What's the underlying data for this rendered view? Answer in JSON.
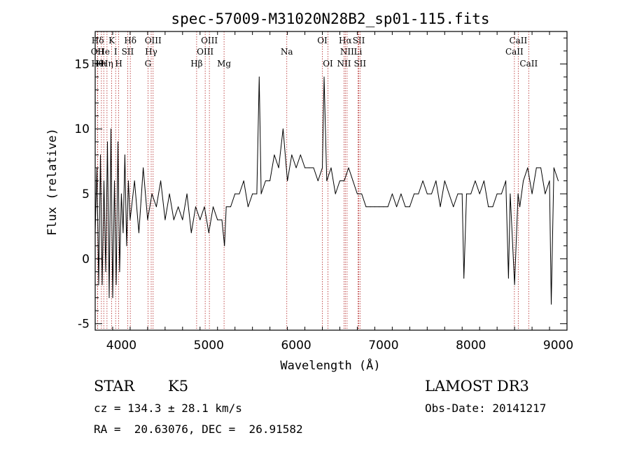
{
  "chart_data": {
    "type": "line",
    "title": "spec-57009-M31020N28B2_sp01-115.fits",
    "xlabel": "Wavelength (Å)",
    "ylabel": "Flux (relative)",
    "xlim": [
      3700,
      9100
    ],
    "ylim": [
      -5.5,
      17.5
    ],
    "xticks": [
      4000,
      5000,
      6000,
      7000,
      8000,
      9000
    ],
    "yticks": [
      -5,
      0,
      5,
      10,
      15
    ],
    "grid": false,
    "series": [
      {
        "name": "flux",
        "x": [
          3700,
          3720,
          3740,
          3760,
          3780,
          3800,
          3820,
          3840,
          3860,
          3880,
          3900,
          3920,
          3940,
          3960,
          3980,
          4000,
          4020,
          4040,
          4060,
          4080,
          4100,
          4150,
          4200,
          4250,
          4300,
          4350,
          4400,
          4450,
          4500,
          4550,
          4600,
          4650,
          4700,
          4750,
          4800,
          4850,
          4900,
          4950,
          5000,
          5050,
          5100,
          5150,
          5180,
          5200,
          5250,
          5300,
          5350,
          5400,
          5450,
          5500,
          5550,
          5577,
          5600,
          5650,
          5700,
          5750,
          5800,
          5850,
          5900,
          5950,
          6000,
          6050,
          6100,
          6150,
          6200,
          6250,
          6300,
          6320,
          6350,
          6400,
          6450,
          6500,
          6550,
          6600,
          6650,
          6700,
          6750,
          6800,
          6850,
          6900,
          6950,
          7000,
          7050,
          7100,
          7150,
          7200,
          7250,
          7300,
          7350,
          7400,
          7450,
          7500,
          7550,
          7600,
          7650,
          7700,
          7750,
          7800,
          7850,
          7900,
          7920,
          7950,
          8000,
          8050,
          8100,
          8150,
          8200,
          8250,
          8300,
          8350,
          8400,
          8430,
          8450,
          8500,
          8540,
          8560,
          8600,
          8650,
          8700,
          8750,
          8800,
          8850,
          8900,
          8920,
          8950,
          9000
        ],
        "y": [
          2,
          7,
          -2,
          8,
          -2,
          6,
          -1,
          9,
          -3,
          10,
          -3,
          6,
          -2,
          9,
          -1,
          5,
          2,
          8,
          1,
          6,
          3,
          6,
          2,
          7,
          3,
          5,
          4,
          6,
          3,
          5,
          3,
          4,
          3,
          5,
          2,
          4,
          3,
          4,
          2,
          4,
          3,
          3,
          1,
          4,
          4,
          5,
          5,
          6,
          4,
          5,
          5,
          14,
          5,
          6,
          6,
          8,
          7,
          10,
          6,
          8,
          7,
          8,
          7,
          7,
          7,
          6,
          7,
          14,
          6,
          7,
          5,
          6,
          6,
          7,
          6,
          5,
          5,
          4,
          4,
          4,
          4,
          4,
          4,
          5,
          4,
          5,
          4,
          4,
          5,
          5,
          6,
          5,
          5,
          6,
          4,
          6,
          5,
          4,
          5,
          5,
          -1.5,
          5,
          5,
          6,
          5,
          6,
          4,
          4,
          5,
          5,
          6,
          -1.5,
          5,
          -2,
          5,
          4,
          6,
          7,
          5,
          7,
          7,
          5,
          6,
          -3.5,
          7,
          6
        ]
      }
    ],
    "line_markers": [
      {
        "label": "Hδ",
        "row": 1,
        "wave": 3729
      },
      {
        "label": "OII",
        "row": 2,
        "wave": 3727
      },
      {
        "label": "Hθ",
        "row": 3,
        "wave": 3727
      },
      {
        "label": "Hι",
        "row": 3,
        "wave": 3771
      },
      {
        "label": "He",
        "row": 2,
        "wave": 3798
      },
      {
        "label": "Hη",
        "row": 3,
        "wave": 3835
      },
      {
        "label": "K",
        "row": 1,
        "wave": 3889
      },
      {
        "label": "I",
        "row": 2,
        "wave": 3934
      },
      {
        "label": "H",
        "row": 3,
        "wave": 3969
      },
      {
        "label": "Hδ",
        "row": 1,
        "wave": 4102
      },
      {
        "label": "SII",
        "row": 2,
        "wave": 4072
      },
      {
        "label": "OIII",
        "row": 1,
        "wave": 4363
      },
      {
        "label": "Hγ",
        "row": 2,
        "wave": 4341
      },
      {
        "label": "G",
        "row": 3,
        "wave": 4304
      },
      {
        "label": "Hβ",
        "row": 3,
        "wave": 4861
      },
      {
        "label": "OIII",
        "row": 1,
        "wave": 5007
      },
      {
        "label": "OIII",
        "row": 2,
        "wave": 4959
      },
      {
        "label": "Mg",
        "row": 3,
        "wave": 5175
      },
      {
        "label": "Na",
        "row": 2,
        "wave": 5893
      },
      {
        "label": "OI",
        "row": 1,
        "wave": 6300
      },
      {
        "label": "OI",
        "row": 3,
        "wave": 6364
      },
      {
        "label": "Hα",
        "row": 1,
        "wave": 6563
      },
      {
        "label": "NII",
        "row": 2,
        "wave": 6583
      },
      {
        "label": "NII",
        "row": 3,
        "wave": 6548
      },
      {
        "label": "SII",
        "row": 1,
        "wave": 6717
      },
      {
        "label": "Li",
        "row": 2,
        "wave": 6708
      },
      {
        "label": "SII",
        "row": 3,
        "wave": 6731
      },
      {
        "label": "CaII",
        "row": 1,
        "wave": 8542
      },
      {
        "label": "CaII",
        "row": 2,
        "wave": 8498
      },
      {
        "label": "CaII",
        "row": 3,
        "wave": 8662
      }
    ],
    "line_color": "#b22222"
  },
  "info": {
    "object_class": "STAR",
    "subclass": "K5",
    "survey": "LAMOST DR3",
    "redshift": "cz = 134.3 ± 28.1 km/s",
    "obs_date": "Obs-Date: 20141217",
    "coords": "RA =  20.63076, DEC =  26.91582"
  }
}
